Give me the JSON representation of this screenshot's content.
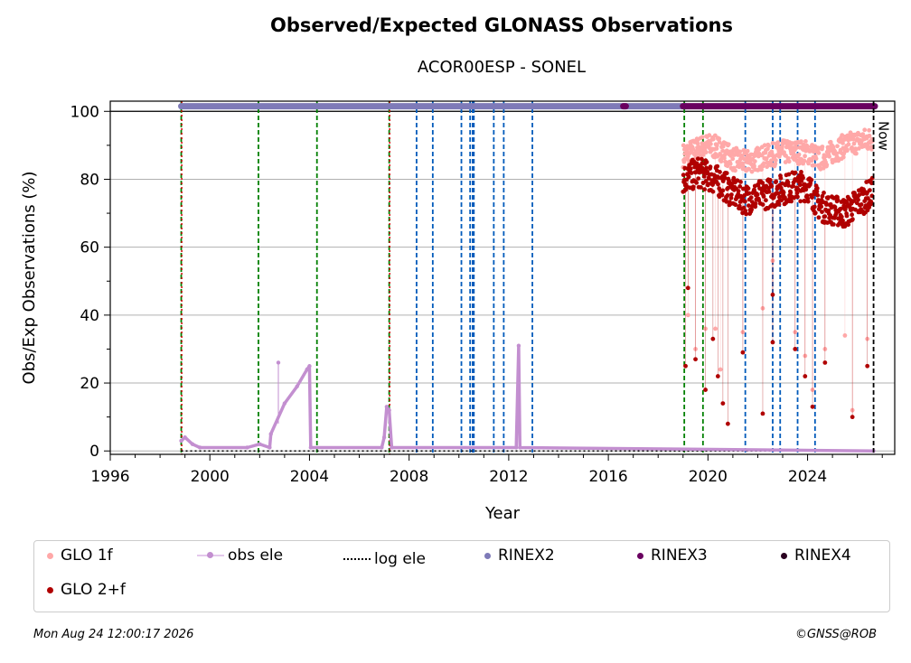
{
  "chart_data": {
    "type": "scatter",
    "title": "Observed/Expected GLONASS Observations",
    "subtitle": "ACOR00ESP - SONEL",
    "xlabel": "Year",
    "ylabel": "Obs/Exp Observations (%)",
    "xlim": [
      1996,
      2027.5
    ],
    "ylim": [
      -1,
      103
    ],
    "x_ticks": [
      1996,
      2000,
      2004,
      2008,
      2012,
      2016,
      2020,
      2024
    ],
    "x_tick_labels": [
      "1996",
      "2000",
      "2004",
      "2008",
      "2012",
      "2016",
      "2020",
      "2024"
    ],
    "y_ticks": [
      0,
      20,
      40,
      60,
      80,
      100
    ],
    "y_tick_labels": [
      "0",
      "20",
      "40",
      "60",
      "80",
      "100"
    ],
    "grid": "horizontal",
    "now_label": "Now",
    "now_year": 2026.65,
    "colors": {
      "glo_1f": "#ffa8a8",
      "glo_2f": "#b00000",
      "obs_ele": "#c38fd0",
      "log_ele": "#000000",
      "rinex2": "#7e7ab8",
      "rinex3": "#6a0060",
      "rinex4": "#2a0020",
      "green_line": "#008000",
      "blue_line": "#005bbb",
      "red_line": "#d00000"
    },
    "event_lines": {
      "green": [
        1998.85,
        2001.95,
        2004.3,
        2007.2,
        2019.05,
        2019.8
      ],
      "red": [
        1998.87,
        2007.22
      ],
      "blue": [
        2008.3,
        2008.95,
        2010.1,
        2010.45,
        2010.55,
        2010.6,
        2011.4,
        2011.8,
        2012.95,
        2021.5,
        2022.6,
        2022.9,
        2023.6,
        2024.3
      ]
    },
    "rinex_coverage": {
      "rinex2": [
        [
          1998.85,
          2019.1
        ]
      ],
      "rinex3": [
        [
          2016.6,
          2016.7
        ],
        [
          2019.0,
          2026.7
        ]
      ]
    },
    "series": [
      {
        "name": "GLO 1f",
        "x_start": 2019.0,
        "x_end": 2026.6,
        "trend": [
          [
            2019.0,
            87
          ],
          [
            2019.6,
            89
          ],
          [
            2020.0,
            90
          ],
          [
            2020.5,
            89
          ],
          [
            2021.0,
            86
          ],
          [
            2021.5,
            85
          ],
          [
            2022.0,
            86
          ],
          [
            2022.5,
            87
          ],
          [
            2023.0,
            88
          ],
          [
            2023.5,
            88
          ],
          [
            2024.0,
            88
          ],
          [
            2024.5,
            86
          ],
          [
            2025.0,
            88
          ],
          [
            2025.5,
            90
          ],
          [
            2026.0,
            91
          ],
          [
            2026.6,
            92
          ]
        ],
        "outliers": [
          [
            2019.2,
            40
          ],
          [
            2019.5,
            30
          ],
          [
            2019.9,
            36
          ],
          [
            2020.3,
            36
          ],
          [
            2020.5,
            24
          ],
          [
            2021.4,
            35
          ],
          [
            2022.2,
            42
          ],
          [
            2022.6,
            56
          ],
          [
            2023.5,
            35
          ],
          [
            2023.9,
            28
          ],
          [
            2024.2,
            18
          ],
          [
            2024.7,
            30
          ],
          [
            2025.5,
            34
          ],
          [
            2025.8,
            12
          ],
          [
            2026.4,
            33
          ]
        ]
      },
      {
        "name": "GLO 2+f",
        "x_start": 2019.0,
        "x_end": 2026.6,
        "trend": [
          [
            2019.0,
            80
          ],
          [
            2019.6,
            82
          ],
          [
            2020.0,
            81
          ],
          [
            2020.5,
            79
          ],
          [
            2021.0,
            76
          ],
          [
            2021.5,
            74
          ],
          [
            2022.0,
            75
          ],
          [
            2022.5,
            76
          ],
          [
            2023.0,
            77
          ],
          [
            2023.5,
            78
          ],
          [
            2024.0,
            78
          ],
          [
            2024.5,
            72
          ],
          [
            2025.0,
            71
          ],
          [
            2025.5,
            70
          ],
          [
            2026.0,
            73
          ],
          [
            2026.6,
            76
          ]
        ],
        "outliers": [
          [
            2019.1,
            25
          ],
          [
            2019.2,
            48
          ],
          [
            2019.5,
            27
          ],
          [
            2019.9,
            18
          ],
          [
            2020.2,
            33
          ],
          [
            2020.4,
            22
          ],
          [
            2020.6,
            14
          ],
          [
            2020.8,
            8
          ],
          [
            2021.4,
            29
          ],
          [
            2022.2,
            11
          ],
          [
            2022.6,
            46
          ],
          [
            2022.6,
            32
          ],
          [
            2023.5,
            30
          ],
          [
            2023.9,
            22
          ],
          [
            2024.2,
            13
          ],
          [
            2024.7,
            26
          ],
          [
            2025.8,
            10
          ],
          [
            2026.4,
            25
          ]
        ]
      },
      {
        "name": "obs ele",
        "segments": [
          [
            [
              1998.85,
              3
            ],
            [
              1999.0,
              4
            ],
            [
              1999.3,
              2
            ],
            [
              1999.6,
              1
            ],
            [
              2001.5,
              1
            ],
            [
              2002.0,
              2
            ],
            [
              2002.4,
              1
            ],
            [
              2002.45,
              5
            ],
            [
              2003.0,
              14
            ],
            [
              2003.5,
              19
            ],
            [
              2003.9,
              24
            ],
            [
              2004.0,
              25
            ],
            [
              2004.05,
              1
            ],
            [
              2006.9,
              1
            ],
            [
              2007.0,
              4
            ],
            [
              2007.1,
              13
            ],
            [
              2007.2,
              12
            ],
            [
              2007.3,
              1
            ],
            [
              2012.3,
              1
            ],
            [
              2012.4,
              31
            ],
            [
              2012.45,
              1
            ],
            [
              2026.65,
              0
            ]
          ]
        ],
        "spike": [
          2002.75,
          26
        ]
      },
      {
        "name": "log ele",
        "x_start": 1998.85,
        "x_end": 2026.65,
        "y": 0
      },
      {
        "name": "RINEX2"
      },
      {
        "name": "RINEX3"
      },
      {
        "name": "RINEX4"
      }
    ]
  },
  "footer": {
    "timestamp": "Mon Aug 24 12:00:17 2026",
    "credit": "©GNSS@ROB"
  }
}
